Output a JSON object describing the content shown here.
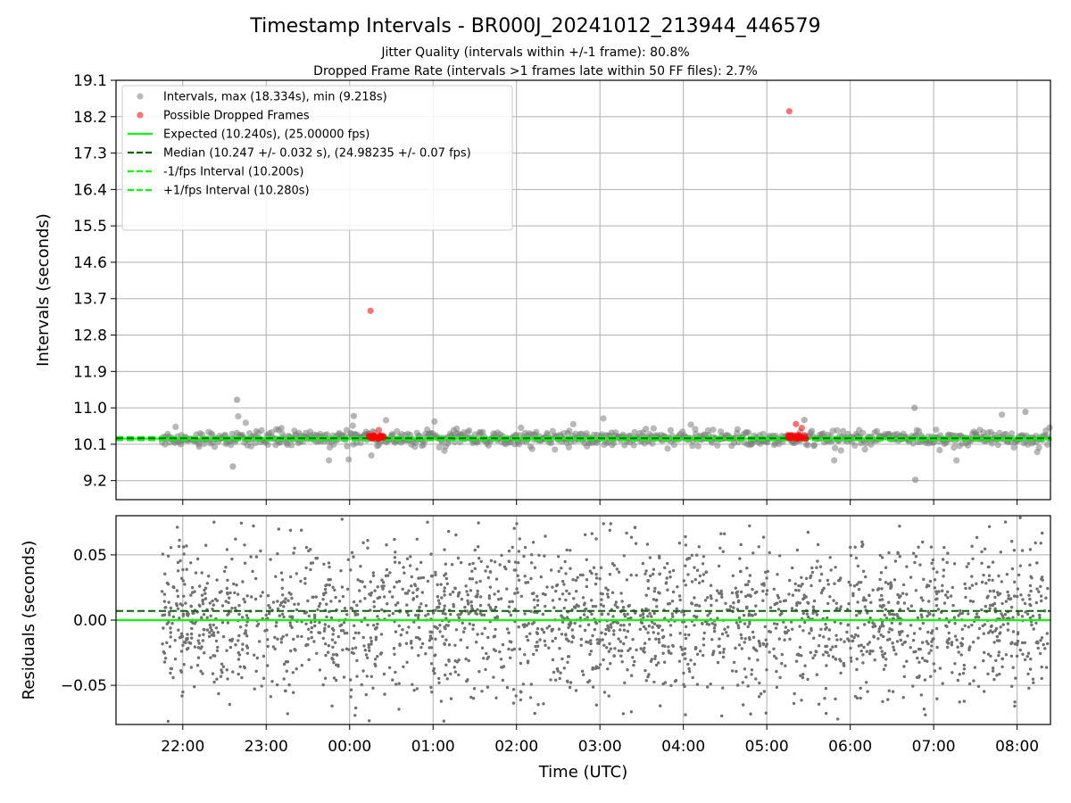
{
  "chart_data": [
    {
      "type": "scatter",
      "title": "Timestamp Intervals - BR000J_20241012_213944_446579",
      "subtitles": [
        "Jitter Quality (intervals within +/-1 frame): 80.8%",
        "Dropped Frame Rate (intervals >1 frames late within 50 FF files): 2.7%"
      ],
      "xlabel": "",
      "ylabel": "Intervals (seconds)",
      "x_unit": "hours after 00:00 UTC",
      "xlim": [
        -2.8,
        8.4
      ],
      "ylim": [
        8.73,
        19.1
      ],
      "yticks": [
        9.2,
        10.1,
        11.0,
        11.9,
        12.8,
        13.7,
        14.6,
        15.5,
        16.4,
        17.3,
        18.2,
        19.1
      ],
      "ytick_labels": [
        "9.2",
        "10.1",
        "11.0",
        "11.9",
        "12.8",
        "13.7",
        "14.6",
        "15.5",
        "16.4",
        "17.3",
        "18.2",
        "19.1"
      ],
      "grid": true,
      "legend_position": "top-left",
      "legend": [
        {
          "key": "intervals",
          "label": "Intervals, max (18.334s), min (9.218s)",
          "kind": "marker",
          "color": "#808080"
        },
        {
          "key": "dropped",
          "label": "Possible Dropped Frames",
          "kind": "marker",
          "color": "#ff0000"
        },
        {
          "key": "expected",
          "label": "Expected (10.240s), (25.00000 fps)",
          "kind": "solid",
          "color": "#00ff00"
        },
        {
          "key": "median",
          "label": "Median (10.247 +/- 0.032 s), (24.98235 +/- 0.07 fps)",
          "kind": "dashed",
          "color": "#006400"
        },
        {
          "key": "minus",
          "label": "-1/fps Interval (10.200s)",
          "kind": "dashed",
          "color": "#00ff00"
        },
        {
          "key": "plus",
          "label": "+1/fps Interval (10.280s)",
          "kind": "dashed",
          "color": "#00ff00"
        }
      ],
      "reference_lines": {
        "expected": 10.24,
        "median": 10.247,
        "minus": 10.2,
        "plus": 10.28
      },
      "series": [
        {
          "name": "Intervals, max (18.334s), min (9.218s)",
          "color": "#808080",
          "x_range": [
            -2.25,
            8.4
          ],
          "y_center": 10.24,
          "y_spread": 0.1,
          "notable_points": [
            {
              "x": -1.35,
              "y": 11.2
            },
            {
              "x": -1.4,
              "y": 9.55
            },
            {
              "x": 6.77,
              "y": 11.0
            },
            {
              "x": 6.78,
              "y": 9.22
            },
            {
              "x": 5.45,
              "y": 10.7
            },
            {
              "x": 0.05,
              "y": 10.8
            },
            {
              "x": 8.1,
              "y": 10.9
            }
          ]
        },
        {
          "name": "Possible Dropped Frames",
          "color": "#ff0000",
          "points": [
            {
              "x": 0.25,
              "y": 13.4
            },
            {
              "x": 5.27,
              "y": 18.334
            },
            {
              "x": 5.35,
              "y": 10.6
            },
            {
              "x": 5.42,
              "y": 10.5
            },
            {
              "x": 0.35,
              "y": 10.45
            }
          ],
          "clusters": [
            {
              "x_range": [
                0.22,
                0.42
              ],
              "y": 10.28
            },
            {
              "x_range": [
                5.25,
                5.48
              ],
              "y": 10.28
            }
          ]
        }
      ]
    },
    {
      "type": "scatter",
      "xlabel": "Time (UTC)",
      "ylabel": "Residuals (seconds)",
      "x_unit": "hours after 00:00 UTC",
      "xlim": [
        -2.8,
        8.4
      ],
      "ylim": [
        -0.08,
        0.08
      ],
      "yticks": [
        -0.05,
        0.0,
        0.05
      ],
      "ytick_labels": [
        "−0.05",
        "0.00",
        "0.05"
      ],
      "xticks": [
        -2,
        -1,
        0,
        1,
        2,
        3,
        4,
        5,
        6,
        7,
        8
      ],
      "xtick_labels": [
        "22:00",
        "23:00",
        "00:00",
        "01:00",
        "02:00",
        "03:00",
        "04:00",
        "05:00",
        "06:00",
        "07:00",
        "08:00"
      ],
      "grid": true,
      "reference_lines": {
        "zero": 0.0,
        "median_offset": 0.007
      },
      "series": [
        {
          "name": "",
          "color": "#808080",
          "x_range": [
            -2.25,
            8.4
          ],
          "y_spread": 0.03
        }
      ]
    }
  ]
}
